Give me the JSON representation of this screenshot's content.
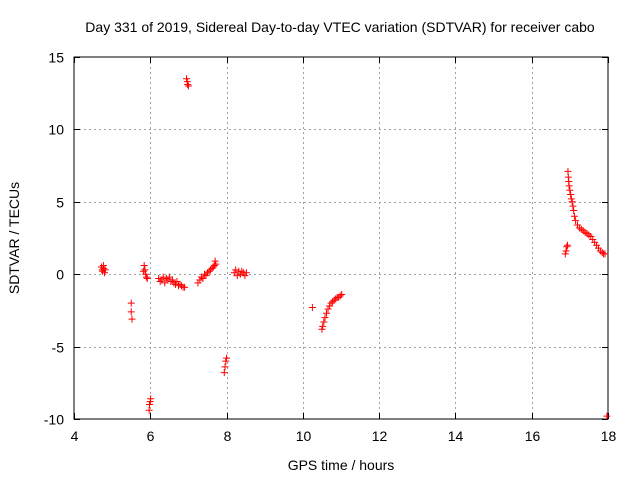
{
  "chart_data": {
    "type": "scatter",
    "title": "Day 331 of 2019, Sidereal Day-to-day VTEC variation (SDTVAR) for receiver cabo",
    "xlabel": "GPS time / hours",
    "ylabel": "SDTVAR / TECUs",
    "xlim": [
      4,
      18
    ],
    "ylim": [
      -10,
      15
    ],
    "xticks": [
      4,
      6,
      8,
      10,
      12,
      14,
      16,
      18
    ],
    "yticks": [
      -10,
      -5,
      0,
      5,
      10,
      15
    ],
    "grid": true,
    "marker": "+",
    "color": "#ff0000",
    "series": [
      {
        "name": "SDTVAR",
        "points": [
          [
            4.72,
            0.5
          ],
          [
            4.74,
            0.3
          ],
          [
            4.75,
            0.2
          ],
          [
            4.77,
            0.6
          ],
          [
            4.78,
            0.4
          ],
          [
            4.8,
            0.1
          ],
          [
            4.82,
            0.3
          ],
          [
            5.5,
            -2.0
          ],
          [
            5.5,
            -2.6
          ],
          [
            5.52,
            -3.1
          ],
          [
            5.82,
            0.2
          ],
          [
            5.84,
            0.6
          ],
          [
            5.86,
            0.3
          ],
          [
            5.88,
            0.0
          ],
          [
            5.9,
            -0.2
          ],
          [
            5.92,
            -0.3
          ],
          [
            5.97,
            -9.4
          ],
          [
            5.98,
            -9.0
          ],
          [
            6.0,
            -8.8
          ],
          [
            6.01,
            -8.6
          ],
          [
            6.22,
            -0.3
          ],
          [
            6.26,
            -0.5
          ],
          [
            6.3,
            -0.4
          ],
          [
            6.34,
            -0.2
          ],
          [
            6.38,
            -0.6
          ],
          [
            6.42,
            -0.3
          ],
          [
            6.46,
            -0.4
          ],
          [
            6.5,
            -0.2
          ],
          [
            6.54,
            -0.5
          ],
          [
            6.58,
            -0.4
          ],
          [
            6.62,
            -0.6
          ],
          [
            6.66,
            -0.7
          ],
          [
            6.7,
            -0.5
          ],
          [
            6.74,
            -0.8
          ],
          [
            6.78,
            -0.7
          ],
          [
            6.82,
            -0.8
          ],
          [
            6.86,
            -0.9
          ],
          [
            6.9,
            -0.9
          ],
          [
            6.95,
            13.5
          ],
          [
            6.97,
            13.3
          ],
          [
            6.98,
            13.1
          ],
          [
            7.0,
            13.0
          ],
          [
            7.25,
            -0.6
          ],
          [
            7.3,
            -0.4
          ],
          [
            7.34,
            -0.2
          ],
          [
            7.38,
            -0.3
          ],
          [
            7.42,
            0.0
          ],
          [
            7.46,
            -0.1
          ],
          [
            7.5,
            0.1
          ],
          [
            7.54,
            0.2
          ],
          [
            7.58,
            0.3
          ],
          [
            7.62,
            0.4
          ],
          [
            7.65,
            0.5
          ],
          [
            7.68,
            0.6
          ],
          [
            7.7,
            0.9
          ],
          [
            7.72,
            0.7
          ],
          [
            7.94,
            -6.8
          ],
          [
            7.96,
            -6.4
          ],
          [
            7.98,
            -6.0
          ],
          [
            8.0,
            -5.8
          ],
          [
            8.2,
            0.1
          ],
          [
            8.24,
            0.3
          ],
          [
            8.28,
            -0.1
          ],
          [
            8.32,
            0.2
          ],
          [
            8.36,
            0.0
          ],
          [
            8.4,
            0.2
          ],
          [
            8.44,
            0.1
          ],
          [
            8.48,
            -0.1
          ],
          [
            8.52,
            0.1
          ],
          [
            10.25,
            -2.3
          ],
          [
            10.5,
            -3.8
          ],
          [
            10.52,
            -3.6
          ],
          [
            10.55,
            -3.3
          ],
          [
            10.58,
            -3.0
          ],
          [
            10.62,
            -2.7
          ],
          [
            10.66,
            -2.4
          ],
          [
            10.7,
            -2.2
          ],
          [
            10.74,
            -2.0
          ],
          [
            10.78,
            -1.9
          ],
          [
            10.82,
            -1.8
          ],
          [
            10.86,
            -1.7
          ],
          [
            10.9,
            -1.6
          ],
          [
            10.94,
            -1.6
          ],
          [
            10.98,
            -1.5
          ],
          [
            11.02,
            -1.4
          ],
          [
            16.88,
            1.4
          ],
          [
            16.9,
            1.6
          ],
          [
            16.92,
            1.9
          ],
          [
            16.94,
            2.0
          ],
          [
            16.95,
            7.1
          ],
          [
            16.96,
            6.7
          ],
          [
            16.97,
            6.4
          ],
          [
            16.98,
            6.1
          ],
          [
            17.0,
            5.8
          ],
          [
            17.02,
            5.5
          ],
          [
            17.04,
            5.2
          ],
          [
            17.06,
            5.0
          ],
          [
            17.08,
            4.7
          ],
          [
            17.1,
            4.4
          ],
          [
            17.12,
            4.0
          ],
          [
            17.15,
            3.7
          ],
          [
            17.2,
            3.4
          ],
          [
            17.25,
            3.2
          ],
          [
            17.3,
            3.1
          ],
          [
            17.35,
            3.0
          ],
          [
            17.4,
            2.9
          ],
          [
            17.45,
            2.8
          ],
          [
            17.5,
            2.7
          ],
          [
            17.55,
            2.6
          ],
          [
            17.6,
            2.4
          ],
          [
            17.65,
            2.2
          ],
          [
            17.7,
            2.0
          ],
          [
            17.75,
            1.8
          ],
          [
            17.8,
            1.6
          ],
          [
            17.85,
            1.5
          ],
          [
            17.88,
            1.4
          ],
          [
            17.92,
            1.4
          ],
          [
            17.97,
            -9.8
          ]
        ]
      }
    ]
  }
}
